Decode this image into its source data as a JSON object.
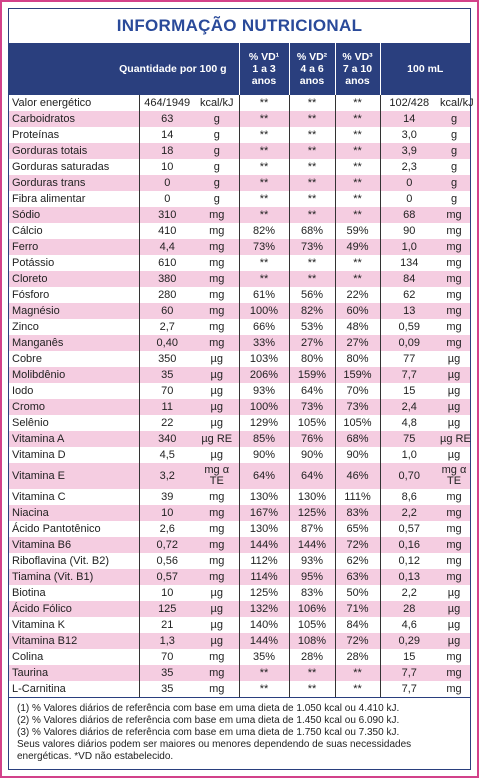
{
  "title": "INFORMAÇÃO NUTRICIONAL",
  "header": {
    "quantity": "Quantidade por 100 g",
    "vd1": [
      "% VD¹",
      "1 a 3",
      "anos"
    ],
    "vd2": [
      "% VD²",
      "4 a 6",
      "anos"
    ],
    "vd3": [
      "% VD³",
      "7 a 10",
      "anos"
    ],
    "per_ml": "100 mL"
  },
  "rows": [
    [
      "Valor energético",
      "464/1949",
      "kcal/kJ",
      "**",
      "**",
      "**",
      "102/428",
      "kcal/kJ"
    ],
    [
      "Carboidratos",
      "63",
      "g",
      "**",
      "**",
      "**",
      "14",
      "g"
    ],
    [
      "Proteínas",
      "14",
      "g",
      "**",
      "**",
      "**",
      "3,0",
      "g"
    ],
    [
      "Gorduras totais",
      "18",
      "g",
      "**",
      "**",
      "**",
      "3,9",
      "g"
    ],
    [
      "Gorduras saturadas",
      "10",
      "g",
      "**",
      "**",
      "**",
      "2,3",
      "g"
    ],
    [
      "Gorduras trans",
      "0",
      "g",
      "**",
      "**",
      "**",
      "0",
      "g"
    ],
    [
      "Fibra alimentar",
      "0",
      "g",
      "**",
      "**",
      "**",
      "0",
      "g"
    ],
    [
      "Sódio",
      "310",
      "mg",
      "**",
      "**",
      "**",
      "68",
      "mg"
    ],
    [
      "Cálcio",
      "410",
      "mg",
      "82%",
      "68%",
      "59%",
      "90",
      "mg"
    ],
    [
      "Ferro",
      "4,4",
      "mg",
      "73%",
      "73%",
      "49%",
      "1,0",
      "mg"
    ],
    [
      "Potássio",
      "610",
      "mg",
      "**",
      "**",
      "**",
      "134",
      "mg"
    ],
    [
      "Cloreto",
      "380",
      "mg",
      "**",
      "**",
      "**",
      "84",
      "mg"
    ],
    [
      "Fósforo",
      "280",
      "mg",
      "61%",
      "56%",
      "22%",
      "62",
      "mg"
    ],
    [
      "Magnésio",
      "60",
      "mg",
      "100%",
      "82%",
      "60%",
      "13",
      "mg"
    ],
    [
      "Zinco",
      "2,7",
      "mg",
      "66%",
      "53%",
      "48%",
      "0,59",
      "mg"
    ],
    [
      "Manganês",
      "0,40",
      "mg",
      "33%",
      "27%",
      "27%",
      "0,09",
      "mg"
    ],
    [
      "Cobre",
      "350",
      "µg",
      "103%",
      "80%",
      "80%",
      "77",
      "µg"
    ],
    [
      "Molibdênio",
      "35",
      "µg",
      "206%",
      "159%",
      "159%",
      "7,7",
      "µg"
    ],
    [
      "Iodo",
      "70",
      "µg",
      "93%",
      "64%",
      "70%",
      "15",
      "µg"
    ],
    [
      "Cromo",
      "11",
      "µg",
      "100%",
      "73%",
      "73%",
      "2,4",
      "µg"
    ],
    [
      "Selênio",
      "22",
      "µg",
      "129%",
      "105%",
      "105%",
      "4,8",
      "µg"
    ],
    [
      "Vitamina A",
      "340",
      "µg RE",
      "85%",
      "76%",
      "68%",
      "75",
      "µg RE"
    ],
    [
      "Vitamina D",
      "4,5",
      "µg",
      "90%",
      "90%",
      "90%",
      "1,0",
      "µg"
    ],
    [
      "Vitamina E",
      "3,2",
      "mg α TE",
      "64%",
      "64%",
      "46%",
      "0,70",
      "mg α TE"
    ],
    [
      "Vitamina C",
      "39",
      "mg",
      "130%",
      "130%",
      "111%",
      "8,6",
      "mg"
    ],
    [
      "Niacina",
      "10",
      "mg",
      "167%",
      "125%",
      "83%",
      "2,2",
      "mg"
    ],
    [
      "Ácido Pantotênico",
      "2,6",
      "mg",
      "130%",
      "87%",
      "65%",
      "0,57",
      "mg"
    ],
    [
      "Vitamina B6",
      "0,72",
      "mg",
      "144%",
      "144%",
      "72%",
      "0,16",
      "mg"
    ],
    [
      "Riboflavina (Vit. B2)",
      "0,56",
      "mg",
      "112%",
      "93%",
      "62%",
      "0,12",
      "mg"
    ],
    [
      "Tiamina (Vit. B1)",
      "0,57",
      "mg",
      "114%",
      "95%",
      "63%",
      "0,13",
      "mg"
    ],
    [
      "Biotina",
      "10",
      "µg",
      "125%",
      "83%",
      "50%",
      "2,2",
      "µg"
    ],
    [
      "Ácido Fólico",
      "125",
      "µg",
      "132%",
      "106%",
      "71%",
      "28",
      "µg"
    ],
    [
      "Vitamina K",
      "21",
      "µg",
      "140%",
      "105%",
      "84%",
      "4,6",
      "µg"
    ],
    [
      "Vitamina B12",
      "1,3",
      "µg",
      "144%",
      "108%",
      "72%",
      "0,29",
      "µg"
    ],
    [
      "Colina",
      "70",
      "mg",
      "35%",
      "28%",
      "28%",
      "15",
      "mg"
    ],
    [
      "Taurina",
      "35",
      "mg",
      "**",
      "**",
      "**",
      "7,7",
      "mg"
    ],
    [
      "L-Carnitina",
      "35",
      "mg",
      "**",
      "**",
      "**",
      "7,7",
      "mg"
    ]
  ],
  "footnotes": [
    "(1) % Valores diários de referência com base em uma dieta de 1.050 kcal ou 4.410 kJ.",
    "(2) % Valores diários de referência com base em uma dieta de 1.450 kcal ou 6.090 kJ.",
    "(3) % Valores diários de referência com base em uma dieta de 1.750 kcal ou 7.350 kJ.",
    "Seus valores diários podem ser maiores ou menores dependendo de suas necessidades energéticas. *VD não estabelecido."
  ]
}
